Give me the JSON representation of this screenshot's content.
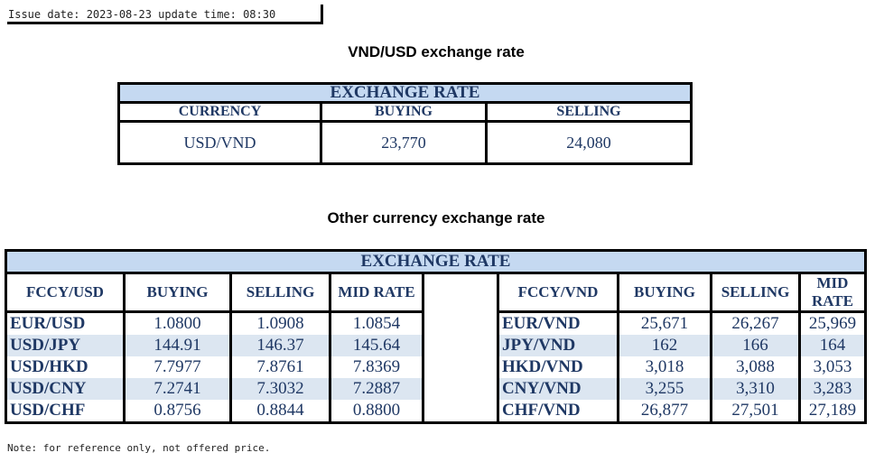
{
  "issue": "Issue date: 2023-08-23 update time: 08:30",
  "vnd_title": "VND/USD exchange rate",
  "vnd_table": {
    "header": "EXCHANGE RATE",
    "columns": [
      "CURRENCY",
      "BUYING",
      "SELLING"
    ],
    "row": [
      "USD/VND",
      "23,770",
      "24,080"
    ]
  },
  "other_title": "Other currency exchange rate",
  "other_table": {
    "header": "EXCHANGE  RATE",
    "left_columns": [
      "FCCY/USD",
      "BUYING",
      "SELLING",
      "MID RATE"
    ],
    "right_columns": [
      "FCCY/VND",
      "BUYING",
      "SELLING",
      "MID RATE"
    ],
    "rows": [
      {
        "l": [
          "EUR/USD",
          "1.0800",
          "1.0908",
          "1.0854"
        ],
        "r": [
          "EUR/VND",
          "25,671",
          "26,267",
          "25,969"
        ]
      },
      {
        "l": [
          "USD/JPY",
          "144.91",
          "146.37",
          "145.64"
        ],
        "r": [
          "JPY/VND",
          "162",
          "166",
          "164"
        ]
      },
      {
        "l": [
          "USD/HKD",
          "7.7977",
          "7.8761",
          "7.8369"
        ],
        "r": [
          "HKD/VND",
          "3,018",
          "3,088",
          "3,053"
        ]
      },
      {
        "l": [
          "USD/CNY",
          "7.2741",
          "7.3032",
          "7.2887"
        ],
        "r": [
          "CNY/VND",
          "3,255",
          "3,310",
          "3,283"
        ]
      },
      {
        "l": [
          "USD/CHF",
          "0.8756",
          "0.8844",
          "0.8800"
        ],
        "r": [
          "CHF/VND",
          "26,877",
          "27,501",
          "27,189"
        ]
      }
    ]
  },
  "note": "Note: for reference only, not offered price."
}
